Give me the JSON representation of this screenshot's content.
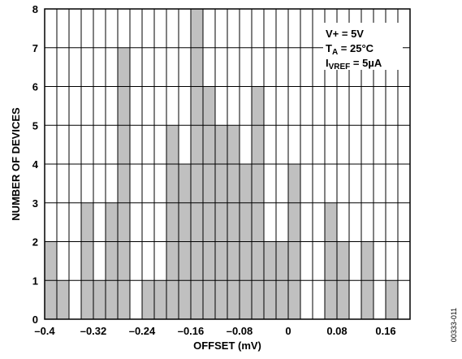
{
  "chart_data": {
    "type": "bar",
    "xlabel": "OFFSET (mV)",
    "ylabel": "NUMBER OF DEVICES",
    "xlim": [
      -0.4,
      0.2
    ],
    "ylim": [
      0,
      8
    ],
    "bin_width": 0.02,
    "bins": [
      {
        "x0": -0.4,
        "x1": -0.38,
        "count": 2
      },
      {
        "x0": -0.38,
        "x1": -0.36,
        "count": 1
      },
      {
        "x0": -0.34,
        "x1": -0.32,
        "count": 3
      },
      {
        "x0": -0.32,
        "x1": -0.3,
        "count": 1
      },
      {
        "x0": -0.3,
        "x1": -0.28,
        "count": 3
      },
      {
        "x0": -0.28,
        "x1": -0.26,
        "count": 7
      },
      {
        "x0": -0.24,
        "x1": -0.22,
        "count": 1
      },
      {
        "x0": -0.22,
        "x1": -0.2,
        "count": 1
      },
      {
        "x0": -0.2,
        "x1": -0.18,
        "count": 5
      },
      {
        "x0": -0.18,
        "x1": -0.16,
        "count": 4
      },
      {
        "x0": -0.16,
        "x1": -0.14,
        "count": 8
      },
      {
        "x0": -0.14,
        "x1": -0.12,
        "count": 6
      },
      {
        "x0": -0.12,
        "x1": -0.1,
        "count": 5
      },
      {
        "x0": -0.1,
        "x1": -0.08,
        "count": 5
      },
      {
        "x0": -0.08,
        "x1": -0.06,
        "count": 4
      },
      {
        "x0": -0.06,
        "x1": -0.04,
        "count": 6
      },
      {
        "x0": -0.04,
        "x1": -0.02,
        "count": 2
      },
      {
        "x0": -0.02,
        "x1": 0.0,
        "count": 2
      },
      {
        "x0": 0.0,
        "x1": 0.02,
        "count": 4
      },
      {
        "x0": 0.06,
        "x1": 0.08,
        "count": 3
      },
      {
        "x0": 0.08,
        "x1": 0.1,
        "count": 2
      },
      {
        "x0": 0.12,
        "x1": 0.14,
        "count": 2
      },
      {
        "x0": 0.16,
        "x1": 0.18,
        "count": 1
      }
    ],
    "x_ticks": [
      {
        "value": -0.4,
        "label": "–0.4"
      },
      {
        "value": -0.32,
        "label": "–0.32"
      },
      {
        "value": -0.24,
        "label": "–0.24"
      },
      {
        "value": -0.16,
        "label": "–0.16"
      },
      {
        "value": -0.08,
        "label": "–0.08"
      },
      {
        "value": 0.0,
        "label": "0"
      },
      {
        "value": 0.08,
        "label": "0.08"
      },
      {
        "value": 0.16,
        "label": "0.16"
      }
    ],
    "y_ticks": [
      0,
      1,
      2,
      3,
      4,
      5,
      6,
      7,
      8
    ],
    "grid": true,
    "bar_color": "#c0c0c0",
    "annotation": [
      {
        "main": "V+ = 5V",
        "sub": "",
        "tail": ""
      },
      {
        "main": "T",
        "sub": "A",
        "tail": " = 25°C"
      },
      {
        "main": "I",
        "sub": "VREF",
        "tail": " = 5µA"
      }
    ],
    "figure_code": "00333-011"
  }
}
